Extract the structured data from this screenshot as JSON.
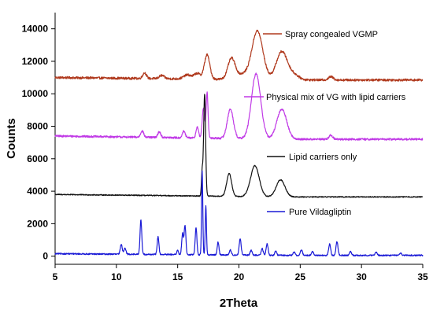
{
  "chart_data": {
    "type": "line",
    "title": "",
    "xlabel": "2Theta",
    "ylabel": "Counts",
    "xlim": [
      5,
      35
    ],
    "ylim": [
      -500,
      15000
    ],
    "xticks": [
      5,
      10,
      15,
      20,
      25,
      30,
      35
    ],
    "yticks": [
      0,
      2000,
      4000,
      6000,
      8000,
      10000,
      12000,
      14000
    ],
    "grid": false,
    "legend_placement": "inline-right",
    "series": [
      {
        "name": "Spray congealed VGMP",
        "color": "#b03a1e",
        "baseline": 10850,
        "noise": 70,
        "base_start": 11000,
        "peaks": [
          [
            12.3,
            350,
            0.15
          ],
          [
            13.7,
            200,
            0.2
          ],
          [
            15.8,
            250,
            0.3
          ],
          [
            16.6,
            350,
            0.25
          ],
          [
            17.4,
            1500,
            0.22
          ],
          [
            19.4,
            1300,
            0.3
          ],
          [
            20.3,
            300,
            0.4
          ],
          [
            21.5,
            3000,
            0.45
          ],
          [
            23.5,
            1750,
            0.45
          ],
          [
            24.5,
            300,
            0.4
          ],
          [
            27.5,
            200,
            0.2
          ]
        ]
      },
      {
        "name": "Physical mix of VG with lipid carriers",
        "color": "#c039e6",
        "baseline": 7200,
        "noise": 60,
        "base_start": 7400,
        "peaks": [
          [
            12.1,
            400,
            0.12
          ],
          [
            13.5,
            350,
            0.12
          ],
          [
            15.5,
            400,
            0.12
          ],
          [
            16.6,
            700,
            0.1
          ],
          [
            17.1,
            1800,
            0.1
          ],
          [
            17.4,
            2800,
            0.08
          ],
          [
            19.3,
            1800,
            0.25
          ],
          [
            21.4,
            4000,
            0.38
          ],
          [
            23.5,
            1850,
            0.4
          ],
          [
            27.5,
            250,
            0.15
          ]
        ]
      },
      {
        "name": "Lipid carriers only",
        "color": "#111111",
        "baseline": 3650,
        "noise": 30,
        "base_start": 3800,
        "peaks": [
          [
            17.0,
            1500,
            0.06
          ],
          [
            17.2,
            6300,
            0.08
          ],
          [
            19.2,
            1400,
            0.2
          ],
          [
            21.3,
            1900,
            0.35
          ],
          [
            23.4,
            1050,
            0.35
          ]
        ]
      },
      {
        "name": "Pure Vildagliptin",
        "color": "#1a1ad6",
        "baseline": 50,
        "noise": 40,
        "base_start": 150,
        "peaks": [
          [
            10.4,
            600,
            0.08
          ],
          [
            10.7,
            400,
            0.08
          ],
          [
            12.0,
            2100,
            0.07
          ],
          [
            13.4,
            1100,
            0.07
          ],
          [
            15.0,
            300,
            0.06
          ],
          [
            15.4,
            1300,
            0.07
          ],
          [
            15.6,
            1800,
            0.07
          ],
          [
            16.5,
            1650,
            0.07
          ],
          [
            17.0,
            5200,
            0.05
          ],
          [
            17.3,
            3000,
            0.05
          ],
          [
            18.3,
            800,
            0.07
          ],
          [
            19.3,
            300,
            0.08
          ],
          [
            20.1,
            1000,
            0.08
          ],
          [
            21.0,
            300,
            0.08
          ],
          [
            21.9,
            400,
            0.08
          ],
          [
            22.3,
            700,
            0.08
          ],
          [
            23.0,
            250,
            0.08
          ],
          [
            24.5,
            200,
            0.08
          ],
          [
            25.1,
            350,
            0.08
          ],
          [
            26.0,
            250,
            0.08
          ],
          [
            27.4,
            700,
            0.08
          ],
          [
            28.0,
            850,
            0.08
          ],
          [
            29.1,
            250,
            0.08
          ],
          [
            31.2,
            200,
            0.08
          ],
          [
            33.2,
            150,
            0.08
          ]
        ]
      }
    ]
  }
}
